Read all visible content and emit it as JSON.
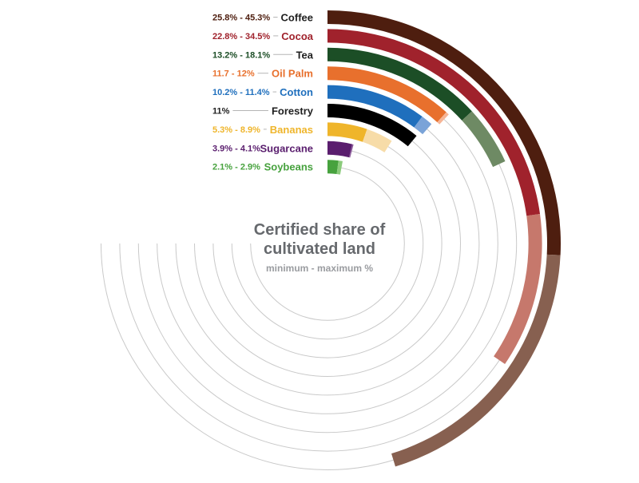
{
  "chart_data": {
    "type": "radial-bar",
    "title_line1": "Certified share of",
    "title_line2": "cultivated land",
    "subtitle": "minimum - maximum %",
    "unit": "%",
    "ylim": [
      0,
      100
    ],
    "series": [
      {
        "name": "Coffee",
        "range_label": "25.8% - 45.3%",
        "min": 25.8,
        "max": 45.3,
        "color": "#4e1e0f",
        "light_color": "#876050",
        "label_color": "#1f1f1f",
        "range_color": "#4e1e0f"
      },
      {
        "name": "Cocoa",
        "range_label": "22.8% - 34.5%",
        "min": 22.8,
        "max": 34.5,
        "color": "#a0222c",
        "light_color": "#c6786c",
        "label_color": "#a0222c",
        "range_color": "#a0222c"
      },
      {
        "name": "Tea",
        "range_label": "13.2% - 18.1%",
        "min": 13.2,
        "max": 18.1,
        "color": "#1c4e26",
        "light_color": "#6e8a64",
        "label_color": "#1f1f1f",
        "range_color": "#1c4e26"
      },
      {
        "name": "Oil Palm",
        "range_label": "11.7 - 12%",
        "min": 11.7,
        "max": 12.0,
        "color": "#e8702d",
        "light_color": "#f6b596",
        "label_color": "#e8702d",
        "range_color": "#e8702d"
      },
      {
        "name": "Cotton",
        "range_label": "10.2% - 11.4%",
        "min": 10.2,
        "max": 11.4,
        "color": "#1f6fbd",
        "light_color": "#7aa3d8",
        "label_color": "#1f6fbd",
        "range_color": "#1f6fbd"
      },
      {
        "name": "Forestry",
        "range_label": "11%",
        "min": 11.0,
        "max": 11.0,
        "color": "#000000",
        "light_color": "#000000",
        "label_color": "#1f1f1f",
        "range_color": "#1f1f1f"
      },
      {
        "name": "Bananas",
        "range_label": "5.3% - 8.9%",
        "min": 5.3,
        "max": 8.9,
        "color": "#efb52b",
        "light_color": "#f7dca8",
        "label_color": "#efb52b",
        "range_color": "#efb52b"
      },
      {
        "name": "Sugarcane",
        "range_label": "3.9% - 4.1%",
        "min": 3.9,
        "max": 4.1,
        "color": "#5a1e6e",
        "light_color": "#8d5d9c",
        "label_color": "#5a1e6e",
        "range_color": "#5a1e6e"
      },
      {
        "name": "Soybeans",
        "range_label": "2.1% - 2.9%",
        "min": 2.1,
        "max": 2.9,
        "color": "#47a23e",
        "light_color": "#8bcb7b",
        "label_color": "#47a23e",
        "range_color": "#47a23e"
      }
    ]
  }
}
